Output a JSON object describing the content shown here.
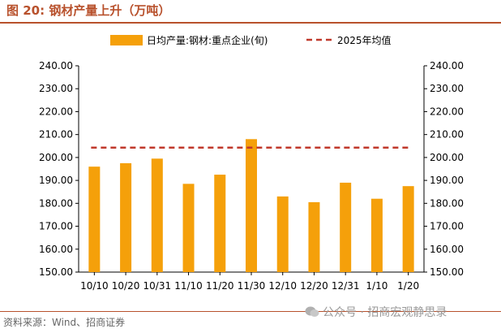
{
  "title": "图 20:  钢材产量上升（万吨）",
  "source": "资料来源：Wind、招商证券",
  "watermark": "公众号 · 招商宏观静思录",
  "colors": {
    "bar": "#f5a00a",
    "line": "#c0392b",
    "accent": "#b8512c"
  },
  "chart_data": {
    "type": "bar",
    "categories": [
      "10/10",
      "10/20",
      "10/31",
      "11/10",
      "11/20",
      "11/30",
      "12/10",
      "12/20",
      "12/31",
      "1/10",
      "1/20"
    ],
    "series": [
      {
        "name": "日均产量:钢材:重点企业(旬)",
        "type": "bar",
        "values": [
          196.0,
          197.5,
          199.5,
          188.5,
          192.5,
          208.0,
          183.0,
          180.5,
          189.0,
          182.0,
          187.5
        ]
      },
      {
        "name": "2025年均值",
        "type": "line",
        "style": "dashed",
        "value": 204.3
      }
    ],
    "yticks": [
      "240.00",
      "230.00",
      "220.00",
      "210.00",
      "200.00",
      "190.00",
      "180.00",
      "170.00",
      "160.00",
      "150.00"
    ],
    "ylim": [
      150,
      240
    ],
    "legend": "top",
    "grid": false
  }
}
